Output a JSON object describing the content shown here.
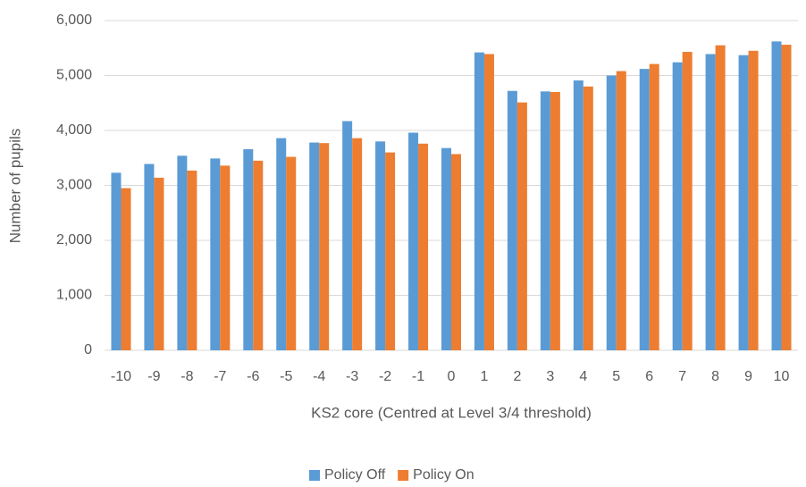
{
  "chart_data": {
    "type": "bar",
    "x_label": "KS2 core (Centred at Level 3/4 threshold)",
    "y_label": "Number of pupils",
    "categories": [
      "-10",
      "-9",
      "-8",
      "-7",
      "-6",
      "-5",
      "-4",
      "-3",
      "-2",
      "-1",
      "0",
      "1",
      "2",
      "3",
      "4",
      "5",
      "6",
      "7",
      "8",
      "9",
      "10"
    ],
    "series": [
      {
        "name": "Policy Off",
        "color": "#5b9bd5",
        "values": [
          3230,
          3390,
          3540,
          3490,
          3660,
          3860,
          3780,
          4170,
          3800,
          3960,
          3680,
          5420,
          4720,
          4710,
          4910,
          5000,
          5120,
          5240,
          5390,
          5370,
          5620
        ]
      },
      {
        "name": "Policy On",
        "color": "#ed7d31",
        "values": [
          2950,
          3140,
          3270,
          3360,
          3450,
          3520,
          3770,
          3860,
          3600,
          3760,
          3570,
          5390,
          4510,
          4700,
          4800,
          5080,
          5210,
          5430,
          5550,
          5450,
          5560
        ]
      }
    ],
    "ylim": [
      0,
      6000
    ],
    "yticks": [
      0,
      {
        "value": 1000,
        "label": "1,000"
      },
      {
        "value": 2000,
        "label": "2,000"
      },
      {
        "value": 3000,
        "label": "3,000"
      },
      {
        "value": 4000,
        "label": "4,000"
      },
      {
        "value": 5000,
        "label": "5,000"
      },
      {
        "value": 6000,
        "label": "6,000"
      }
    ],
    "grid": true,
    "legend": "bottom"
  }
}
